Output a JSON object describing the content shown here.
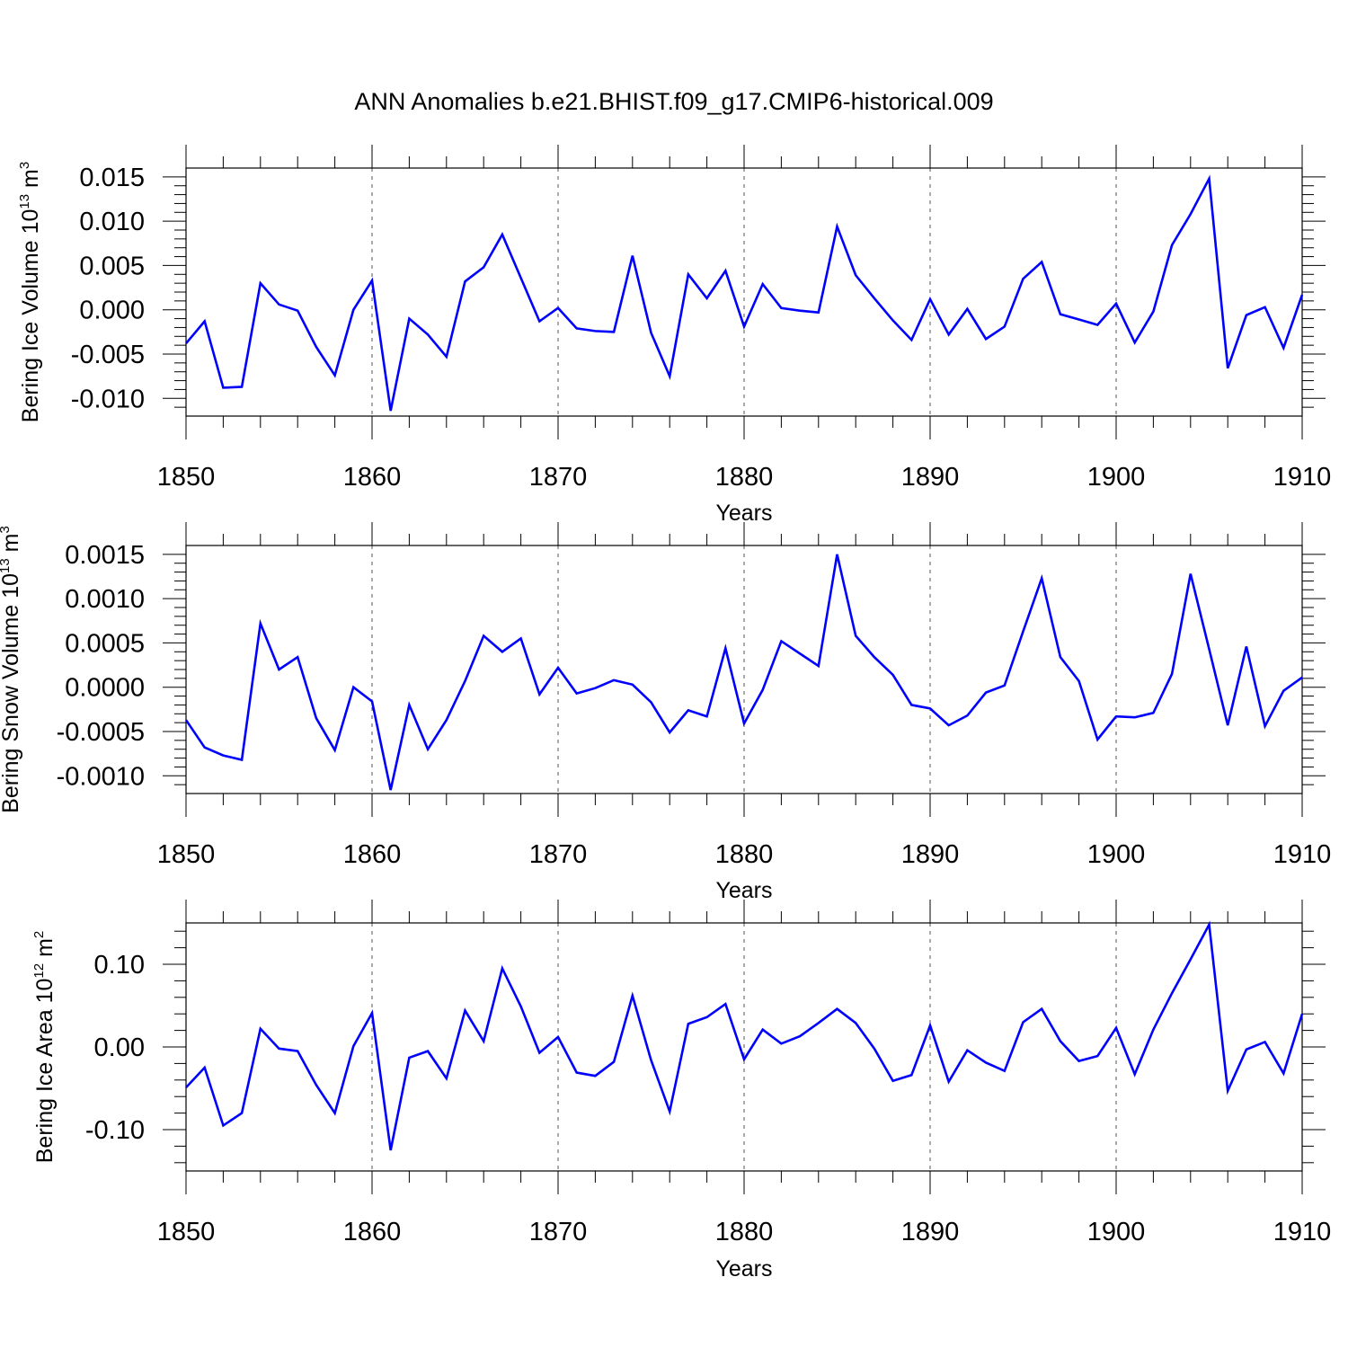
{
  "title": "ANN Anomalies b.e21.BHIST.f09_g17.CMIP6-historical.009",
  "chart_data": [
    {
      "type": "line",
      "ylabel_prefix": "Bering Ice Volume 10",
      "ylabel_exp": "13",
      "ylabel_unit": " m",
      "ylabel_unit_exp": "3",
      "xlabel": "Years",
      "xlim": [
        1850,
        1910
      ],
      "ylim": [
        -0.012,
        0.016
      ],
      "x_ticks": [
        1850,
        1860,
        1870,
        1880,
        1890,
        1900,
        1910
      ],
      "x_tick_labels": [
        "1850",
        "1860",
        "1870",
        "1880",
        "1890",
        "1900",
        "1910"
      ],
      "y_ticks": [
        0.015,
        0.01,
        0.005,
        0.0,
        -0.005,
        -0.01
      ],
      "y_tick_labels": [
        "0.015",
        "0.010",
        "0.005",
        "0.000",
        "-0.005",
        "-0.010"
      ],
      "y_minor_step": 0.001,
      "grid_x": [
        1860,
        1870,
        1880,
        1890,
        1900
      ],
      "color": "#0000ff",
      "x_start": 1850,
      "values": [
        -0.0038,
        -0.0013,
        -0.0088,
        -0.0087,
        0.003,
        0.0006,
        -0.0001,
        -0.0042,
        -0.0074,
        0.0,
        0.0033,
        -0.0114,
        -0.001,
        -0.0028,
        -0.0053,
        0.0032,
        0.0048,
        0.0085,
        0.0036,
        -0.0013,
        0.0002,
        -0.0021,
        -0.0024,
        -0.0025,
        0.0061,
        -0.0026,
        -0.0075,
        0.004,
        0.0013,
        0.0044,
        -0.0019,
        0.0029,
        0.0002,
        -0.0001,
        -0.0003,
        0.0094,
        0.0039,
        0.0013,
        -0.0012,
        -0.0034,
        0.0012,
        -0.0028,
        0.0001,
        -0.0033,
        -0.0019,
        0.0035,
        0.0054,
        -0.0005,
        -0.0011,
        -0.0017,
        0.0007,
        -0.0037,
        -0.0002,
        0.0073,
        0.0108,
        0.0148,
        -0.0066,
        -0.0006,
        0.0003,
        -0.0043,
        0.0017
      ]
    },
    {
      "type": "line",
      "ylabel_prefix": "Bering Snow Volume 10",
      "ylabel_exp": "13",
      "ylabel_unit": " m",
      "ylabel_unit_exp": "3",
      "xlabel": "Years",
      "xlim": [
        1850,
        1910
      ],
      "ylim": [
        -0.0012,
        0.0016
      ],
      "x_ticks": [
        1850,
        1860,
        1870,
        1880,
        1890,
        1900,
        1910
      ],
      "x_tick_labels": [
        "1850",
        "1860",
        "1870",
        "1880",
        "1890",
        "1900",
        "1910"
      ],
      "y_ticks": [
        0.0015,
        0.001,
        0.0005,
        0.0,
        -0.0005,
        -0.001
      ],
      "y_tick_labels": [
        "0.0015",
        "0.0010",
        "0.0005",
        "0.0000",
        "-0.0005",
        "-0.0010"
      ],
      "y_minor_step": 0.0001,
      "grid_x": [
        1860,
        1870,
        1880,
        1890,
        1900
      ],
      "color": "#0000ff",
      "x_start": 1850,
      "values": [
        -0.00037,
        -0.00068,
        -0.00077,
        -0.00082,
        0.00072,
        0.0002,
        0.00034,
        -0.00035,
        -0.00071,
        0.0,
        -0.00016,
        -0.00116,
        -0.0002,
        -0.0007,
        -0.00037,
        7e-05,
        0.00058,
        0.0004,
        0.00055,
        -8e-05,
        0.00022,
        -7e-05,
        -1e-05,
        8e-05,
        3e-05,
        -0.00017,
        -0.00051,
        -0.00026,
        -0.00033,
        0.00044,
        -0.00041,
        -3e-05,
        0.00052,
        0.00038,
        0.00024,
        0.0015,
        0.00058,
        0.00034,
        0.00014,
        -0.0002,
        -0.00024,
        -0.00043,
        -0.00032,
        -6e-05,
        2e-05,
        0.00063,
        0.00123,
        0.00034,
        7e-05,
        -0.00059,
        -0.00033,
        -0.00034,
        -0.00029,
        0.00015,
        0.00128,
        0.00043,
        -0.00043,
        0.00046,
        -0.00044,
        -4e-05,
        0.00011
      ]
    },
    {
      "type": "line",
      "ylabel_prefix": "Bering Ice Area 10",
      "ylabel_exp": "12",
      "ylabel_unit": " m",
      "ylabel_unit_exp": "2",
      "xlabel": "Years",
      "xlim": [
        1850,
        1910
      ],
      "ylim": [
        -0.15,
        0.15
      ],
      "x_ticks": [
        1850,
        1860,
        1870,
        1880,
        1890,
        1900,
        1910
      ],
      "x_tick_labels": [
        "1850",
        "1860",
        "1870",
        "1880",
        "1890",
        "1900",
        "1910"
      ],
      "y_ticks": [
        0.1,
        0.0,
        -0.1
      ],
      "y_tick_labels": [
        "0.10",
        "0.00",
        "-0.10"
      ],
      "y_minor_step": 0.02,
      "grid_x": [
        1860,
        1870,
        1880,
        1890,
        1900
      ],
      "color": "#0000ff",
      "x_start": 1850,
      "values": [
        -0.049,
        -0.025,
        -0.095,
        -0.08,
        0.022,
        -0.002,
        -0.005,
        -0.046,
        -0.08,
        0.001,
        0.041,
        -0.125,
        -0.013,
        -0.005,
        -0.038,
        0.044,
        0.007,
        0.095,
        0.049,
        -0.007,
        0.012,
        -0.031,
        -0.035,
        -0.018,
        0.062,
        -0.016,
        -0.078,
        0.028,
        0.036,
        0.052,
        -0.015,
        0.021,
        0.004,
        0.013,
        0.029,
        0.046,
        0.029,
        -0.002,
        -0.041,
        -0.034,
        0.026,
        -0.042,
        -0.004,
        -0.019,
        -0.029,
        0.03,
        0.046,
        0.007,
        -0.017,
        -0.011,
        0.023,
        -0.033,
        0.021,
        0.065,
        0.106,
        0.148,
        -0.053,
        -0.003,
        0.006,
        -0.032,
        0.04
      ]
    }
  ]
}
